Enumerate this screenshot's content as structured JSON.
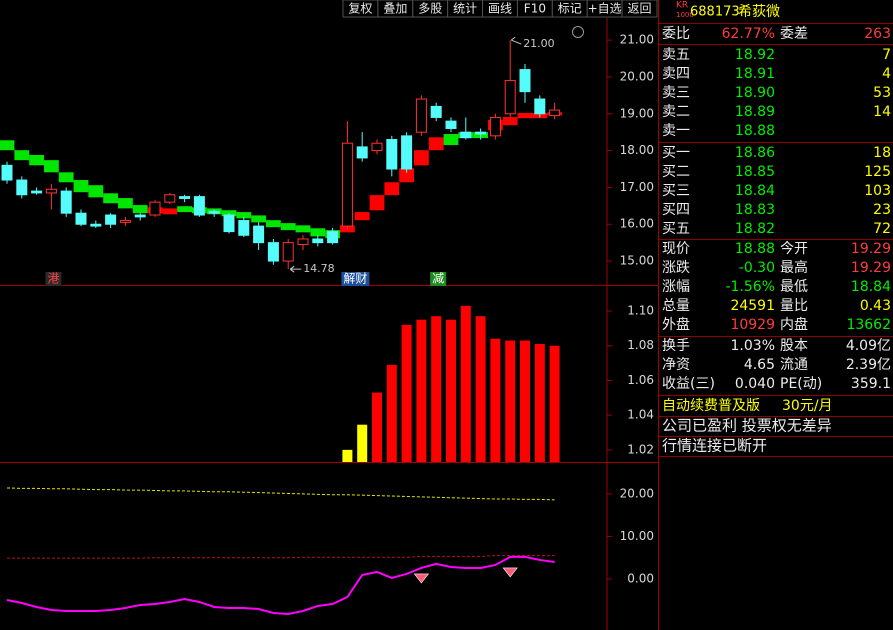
{
  "toolbar": [
    "复权",
    "叠加",
    "多股",
    "统计",
    "画线",
    "F10",
    "标记",
    "+自选",
    "返回"
  ],
  "quote": {
    "logo": [
      "KR",
      "1000"
    ],
    "code": "688173",
    "name": "希荻微",
    "ratio": [
      "委比",
      "62.77%",
      "委差",
      "263"
    ],
    "asks": [
      [
        "卖五",
        "18.92",
        "7"
      ],
      [
        "卖四",
        "18.91",
        "4"
      ],
      [
        "卖三",
        "18.90",
        "53"
      ],
      [
        "卖二",
        "18.89",
        "14"
      ],
      [
        "卖一",
        "18.88"
      ]
    ],
    "bids": [
      [
        "买一",
        "18.86",
        "18"
      ],
      [
        "买二",
        "18.85",
        "125"
      ],
      [
        "买三",
        "18.84",
        "103"
      ],
      [
        "买四",
        "18.83",
        "23"
      ],
      [
        "买五",
        "18.82",
        "72"
      ]
    ],
    "stats": [
      [
        "现价",
        "18.88",
        "今开",
        "19.29"
      ],
      [
        "涨跌",
        "-0.30",
        "最高",
        "19.29"
      ],
      [
        "涨幅",
        "-1.56%",
        "最低",
        "18.84"
      ],
      [
        "总量",
        "24591",
        "量比",
        "0.43"
      ],
      [
        "外盘",
        "10929",
        "内盘",
        "13662"
      ]
    ],
    "finance": [
      [
        "换手",
        "1.03%",
        "股本",
        "4.09亿"
      ],
      [
        "净资",
        "4.65",
        "流通",
        "2.39亿"
      ],
      [
        "收益(三)",
        "0.040",
        "PE(动)",
        "359.1"
      ]
    ],
    "promo": [
      "自动续费普及版",
      "30元/月"
    ],
    "notes": [
      "公司已盈利 投票权无差异",
      "行情连接已断开"
    ]
  },
  "chart_data": [
    {
      "type": "candlestick",
      "open": [
        17.6,
        17.2,
        16.9,
        16.85,
        16.9,
        16.3,
        16.0,
        16.25,
        16.05,
        16.25,
        16.25,
        16.6,
        16.75,
        16.75,
        16.35,
        16.25,
        16.1,
        15.95,
        15.5,
        15.0,
        15.45,
        15.6,
        15.8,
        15.95,
        18.1,
        18.0,
        18.3,
        18.4,
        18.5,
        19.2,
        18.8,
        18.5,
        18.5,
        18.4,
        19.0,
        20.2,
        19.4,
        18.95
      ],
      "high": [
        17.7,
        17.3,
        17.0,
        17.1,
        17.0,
        16.4,
        16.1,
        16.3,
        16.2,
        16.3,
        16.65,
        16.85,
        16.8,
        16.8,
        16.4,
        16.3,
        16.2,
        16.05,
        15.6,
        15.6,
        15.7,
        15.7,
        15.9,
        18.8,
        18.5,
        18.3,
        18.4,
        18.5,
        19.5,
        19.3,
        18.9,
        18.9,
        18.6,
        19.0,
        21.0,
        20.35,
        19.5,
        19.3
      ],
      "low": [
        17.1,
        16.7,
        16.8,
        16.4,
        16.2,
        15.95,
        15.9,
        15.9,
        15.95,
        16.1,
        16.2,
        16.55,
        16.6,
        16.2,
        16.2,
        15.75,
        15.65,
        15.3,
        14.9,
        14.78,
        15.3,
        15.4,
        15.45,
        15.85,
        17.7,
        17.9,
        17.3,
        17.4,
        18.4,
        18.8,
        18.5,
        18.3,
        18.3,
        18.3,
        18.9,
        19.3,
        18.9,
        18.85
      ],
      "close": [
        17.2,
        16.8,
        16.85,
        16.95,
        16.3,
        16.0,
        15.95,
        16.0,
        16.1,
        16.2,
        16.6,
        16.8,
        16.7,
        16.25,
        16.3,
        15.8,
        15.7,
        15.5,
        15.0,
        15.5,
        15.6,
        15.5,
        15.5,
        18.2,
        17.8,
        18.2,
        17.5,
        17.5,
        19.4,
        18.9,
        18.6,
        18.35,
        18.45,
        18.9,
        19.9,
        19.6,
        19.0,
        19.1
      ],
      "up_color": "#ff3232",
      "down_color": "#54fcfc",
      "band": {
        "upper": [
          18.28,
          18.01,
          17.88,
          17.74,
          17.41,
          17.2,
          17.06,
          16.84,
          16.71,
          16.52,
          16.46,
          16.43,
          16.49,
          16.46,
          16.43,
          16.38,
          16.33,
          16.24,
          16.11,
          16.03,
          15.97,
          15.89,
          15.84,
          15.97,
          16.33,
          16.79,
          17.14,
          17.52,
          18.01,
          18.36,
          18.45,
          18.5,
          18.5,
          18.83,
          18.91,
          19.02,
          19.02,
          19.04
        ],
        "lower": [
          18.01,
          17.74,
          17.6,
          17.41,
          17.14,
          16.87,
          16.73,
          16.57,
          16.43,
          16.3,
          16.3,
          16.27,
          16.33,
          16.3,
          16.27,
          16.22,
          16.16,
          16.05,
          15.92,
          15.84,
          15.78,
          15.67,
          15.62,
          15.78,
          16.11,
          16.38,
          16.79,
          17.14,
          17.6,
          18.01,
          18.15,
          18.34,
          18.34,
          18.55,
          18.69,
          18.88,
          18.88,
          18.96
        ],
        "colors": [
          "#00e600",
          "#00e600",
          "#00e600",
          "#00e600",
          "#00e600",
          "#00e600",
          "#00e600",
          "#00e600",
          "#00e600",
          "#00e600",
          "#ff0000",
          "#ff0000",
          "#00e600",
          "#00e600",
          "#00e600",
          "#00e600",
          "#00e600",
          "#00e600",
          "#00e600",
          "#00e600",
          "#00e600",
          "#00e600",
          "#00e600",
          "#ff0000",
          "#ff0000",
          "#ff0000",
          "#ff0000",
          "#ff0000",
          "#ff0000",
          "#ff0000",
          "#00e600",
          "#00e600",
          "#00e600",
          "#ff0000",
          "#ff0000",
          "#ff0000",
          "#ff0000",
          "#ff0000"
        ]
      },
      "events": [
        null,
        null,
        null,
        "港",
        null,
        null,
        null,
        null,
        null,
        null,
        null,
        null,
        null,
        null,
        null,
        null,
        null,
        null,
        null,
        null,
        null,
        null,
        null,
        "解财",
        null,
        null,
        null,
        null,
        null,
        "减",
        null,
        null,
        null,
        null,
        null,
        null,
        null,
        null
      ],
      "event_colors": [
        [
          "#ff4040",
          "#2a2a2a"
        ],
        [
          "#ffffff",
          "#1f4f9a"
        ],
        [
          "#ffffff",
          "#1e8c1e"
        ]
      ],
      "high_label": {
        "value": 21.0,
        "label": "21.00"
      },
      "low_label": {
        "value": 14.78,
        "label": "14.78"
      },
      "ylim": [
        14.35,
        21.6
      ],
      "yticks": [
        {
          "value": 15,
          "label": "15.00"
        },
        {
          "value": 16,
          "label": "16.00"
        },
        {
          "value": 17,
          "label": "17.00"
        },
        {
          "value": 18,
          "label": "18.00"
        },
        {
          "value": 19,
          "label": "19.00"
        },
        {
          "value": 20,
          "label": "20.00"
        },
        {
          "value": 21,
          "label": "21.00"
        }
      ]
    },
    {
      "type": "bar",
      "series": [
        {
          "color": "#ffff00",
          "values": [
            null,
            null,
            null,
            null,
            null,
            null,
            null,
            null,
            null,
            null,
            null,
            null,
            null,
            null,
            null,
            null,
            null,
            null,
            null,
            null,
            null,
            null,
            null,
            1.02,
            1.0345,
            null,
            null,
            null,
            null,
            null,
            null,
            null,
            null,
            null,
            null,
            null,
            null,
            null
          ]
        },
        {
          "color": "#ff0000",
          "values": [
            null,
            null,
            null,
            null,
            null,
            null,
            null,
            null,
            null,
            null,
            null,
            null,
            null,
            null,
            null,
            null,
            null,
            null,
            null,
            null,
            null,
            null,
            null,
            null,
            null,
            1.053,
            1.069,
            1.092,
            1.095,
            1.097,
            1.095,
            1.103,
            1.097,
            1.084,
            1.083,
            1.083,
            1.081,
            1.08
          ]
        }
      ],
      "ylim": [
        1.013,
        1.115
      ],
      "yticks": [
        1.02,
        1.04,
        1.06,
        1.08,
        {
          "value": 1.1,
          "label": "1.10"
        }
      ]
    },
    {
      "type": "line",
      "series": [
        {
          "color": "#e6e600",
          "dash": true,
          "values": [
            21.4,
            21.3,
            21.3,
            21.2,
            21.2,
            21.1,
            21.0,
            21.0,
            20.9,
            20.9,
            20.8,
            20.7,
            20.7,
            20.6,
            20.5,
            20.5,
            20.4,
            20.3,
            20.2,
            20.1,
            20.0,
            19.9,
            19.8,
            19.8,
            19.7,
            19.6,
            19.5,
            19.4,
            19.3,
            19.2,
            19.1,
            19.0,
            18.9,
            18.8,
            18.8,
            18.7,
            18.7,
            18.6
          ]
        },
        {
          "color": "#c01010",
          "dash": true,
          "values": [
            4.9,
            4.9,
            4.9,
            4.9,
            4.9,
            4.9,
            4.9,
            4.9,
            4.9,
            4.9,
            5.0,
            5.0,
            5.0,
            5.0,
            5.0,
            5.0,
            5.0,
            5.0,
            5.0,
            5.0,
            5.1,
            5.1,
            5.1,
            5.1,
            5.1,
            5.1,
            5.1,
            5.1,
            5.3,
            5.3,
            5.3,
            5.3,
            5.3,
            5.5,
            5.5,
            5.5,
            5.5,
            5.5
          ]
        },
        {
          "color": "#ff00ff",
          "dash": false,
          "values": [
            -4.94,
            -5.65,
            -6.59,
            -7.29,
            -7.53,
            -7.53,
            -7.53,
            -7.29,
            -6.82,
            -6.12,
            -5.88,
            -5.41,
            -4.71,
            -5.41,
            -6.59,
            -6.82,
            -6.82,
            -7.06,
            -8.0,
            -8.24,
            -7.53,
            -6.35,
            -5.88,
            -4.24,
            0.94,
            1.65,
            0.24,
            1.18,
            2.59,
            3.53,
            2.82,
            2.59,
            2.59,
            3.29,
            5.18,
            5.18,
            4.47,
            4.0
          ]
        }
      ],
      "markers": {
        "color": "#ff5a78",
        "values": [
          null,
          null,
          null,
          null,
          null,
          null,
          null,
          null,
          null,
          null,
          null,
          null,
          null,
          null,
          null,
          null,
          null,
          null,
          null,
          null,
          null,
          null,
          null,
          null,
          null,
          null,
          null,
          null,
          0.24,
          null,
          null,
          null,
          null,
          null,
          1.65,
          null,
          null,
          null
        ]
      },
      "ylim": [
        -12,
        27.5
      ],
      "yticks": [
        {
          "value": 0,
          "label": "0.00"
        },
        {
          "value": 10,
          "label": "10.00"
        },
        {
          "value": 20,
          "label": "20.00"
        }
      ]
    }
  ]
}
